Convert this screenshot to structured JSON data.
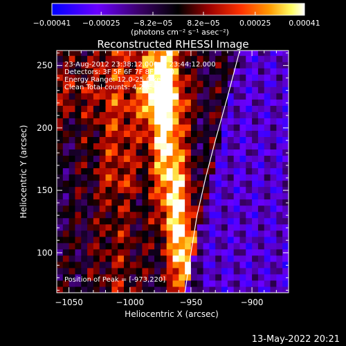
{
  "chart_data": {
    "type": "heatmap",
    "title": "Reconstructed RHESSI Image",
    "xlabel": "Heliocentric X (arcsec)",
    "ylabel": "Heliocentric Y (arcsec)",
    "xlim": [
      -1060,
      -870
    ],
    "ylim": [
      68,
      262
    ],
    "x_ticks": [
      -1050,
      -1000,
      -950,
      -900
    ],
    "y_ticks": [
      100,
      150,
      200,
      250
    ],
    "x_tick_labels": [
      "−1050",
      "−1000",
      "−950",
      "−900"
    ],
    "y_tick_labels": [
      "100",
      "150",
      "200",
      "250"
    ],
    "colorbar": {
      "min": -0.00041,
      "max": 0.00041,
      "ticks": [
        -0.00041,
        -0.00025,
        -8.2e-05,
        8.2e-05,
        0.00025,
        0.00041
      ],
      "tick_labels": [
        "−0.00041",
        "−0.00025",
        "−8.2e−05",
        "8.2e−05",
        "0.00025",
        "0.00041"
      ],
      "units": "(photons cm⁻² s⁻¹ asec⁻²)",
      "colormap": [
        "#0000ff",
        "#6a00ff",
        "#3a0066",
        "#000000",
        "#9a0000",
        "#ff3300",
        "#ff9900",
        "#ffff66",
        "#ffffff"
      ]
    },
    "annotations": [
      "23-Aug-2012 23:38:12.000 to 23:44:12.000",
      "Detectors: 3F 5F 6F 7F 8F, Att 0",
      "Energy Range: 12.0-25.0 keV",
      "Clean     Total counts: 4.24E+03",
      "Position of Peak = [-973,220]"
    ],
    "peak": [
      -973,
      220
    ],
    "limb_curve": [
      [
        -955,
        68
      ],
      [
        -950,
        100
      ],
      [
        -945,
        130
      ],
      [
        -938,
        160
      ],
      [
        -930,
        190
      ],
      [
        -920,
        225
      ],
      [
        -910,
        262
      ]
    ],
    "bright_ridge": [
      [
        -950,
        72
      ],
      [
        -956,
        100
      ],
      [
        -962,
        130
      ],
      [
        -966,
        160
      ],
      [
        -970,
        190
      ],
      [
        -973,
        220
      ],
      [
        -975,
        245
      ],
      [
        -972,
        262
      ]
    ]
  },
  "footer": {
    "timestamp": "13-May-2022 20:21"
  }
}
